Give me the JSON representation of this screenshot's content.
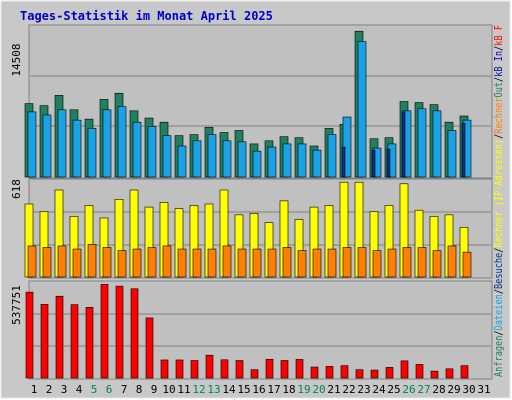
{
  "chart_data": {
    "type": "bar",
    "title": "Tages-Statistik im Monat April 2025",
    "categories": [
      "1",
      "2",
      "3",
      "4",
      "5",
      "6",
      "7",
      "8",
      "9",
      "10",
      "11",
      "12",
      "13",
      "14",
      "15",
      "16",
      "17",
      "18",
      "19",
      "20",
      "21",
      "22",
      "23",
      "24",
      "25",
      "26",
      "27",
      "28",
      "29",
      "30",
      "31"
    ],
    "weekend_days": [
      5,
      6,
      12,
      13,
      19,
      20,
      26,
      27
    ],
    "colors": {
      "title": "#0000cc",
      "plot_bg": "#c0c0c0",
      "outer_bg": "#c8c8c8",
      "grid": "#808080",
      "day_label": "#000000",
      "weekend_label": "#008060",
      "anfragen": "#208060",
      "dateien": "#1aa2e6",
      "besuche": "#00308f",
      "rechner": "#ffff00",
      "kb_out": "#ff8000",
      "kb_in": "#0000aa",
      "kb_f": "#ff0000"
    },
    "panels": [
      {
        "max_label": "14508",
        "ymax": 14508,
        "series": [
          {
            "name": "Anfragen",
            "values": [
              7100,
              6900,
              7900,
              6500,
              5600,
              7500,
              8100,
              6400,
              5700,
              5300,
              4000,
              4100,
              4800,
              4300,
              4500,
              3200,
              3500,
              3900,
              3800,
              3000,
              4700,
              5100,
              14100,
              3700,
              3800,
              7300,
              7200,
              7000,
              5300,
              5900
            ]
          },
          {
            "name": "Dateien",
            "values": [
              6300,
              6000,
              6500,
              5500,
              4700,
              6500,
              6800,
              5300,
              4900,
              4000,
              3000,
              3500,
              4100,
              3500,
              3400,
              2500,
              2900,
              3200,
              3200,
              2600,
              4100,
              5800,
              13100,
              2800,
              3200,
              6400,
              6600,
              6400,
              4500,
              5500
            ]
          },
          {
            "name": "Besuche",
            "values": [
              0,
              0,
              0,
              0,
              0,
              0,
              0,
              0,
              0,
              0,
              0,
              0,
              0,
              0,
              0,
              0,
              0,
              0,
              0,
              0,
              0,
              2900,
              0,
              2600,
              2700,
              6300,
              0,
              0,
              0,
              5200
            ]
          }
        ]
      },
      {
        "max_label": "618",
        "ymax": 618,
        "series": [
          {
            "name": "Rechner (IP-Adressen)",
            "values": [
              470,
              420,
              560,
              390,
              460,
              380,
              500,
              560,
              450,
              480,
              440,
              460,
              470,
              560,
              400,
              410,
              350,
              490,
              370,
              450,
              460,
              610,
              610,
              420,
              460,
              600,
              430,
              390,
              400,
              320
            ]
          },
          {
            "name": "Rechner",
            "values": [
              200,
              190,
              200,
              180,
              210,
              190,
              170,
              180,
              190,
              200,
              180,
              180,
              180,
              200,
              180,
              180,
              180,
              190,
              170,
              180,
              180,
              190,
              190,
              170,
              180,
              190,
              190,
              170,
              200,
              160
            ]
          }
        ]
      },
      {
        "max_label": "537751",
        "ymax": 537751,
        "series": [
          {
            "name": "kB F",
            "values": [
              486000,
              417000,
              463000,
              415000,
              400000,
              530000,
              520000,
              505000,
              340000,
              102000,
              102000,
              99000,
              129000,
              103000,
              99000,
              47000,
              106000,
              99000,
              105000,
              62000,
              66000,
              70000,
              47000,
              45000,
              60000,
              97000,
              77000,
              39000,
              52000,
              70000
            ]
          },
          {
            "name": "kB In",
            "values": [
              0,
              0,
              0,
              0,
              0,
              0,
              0,
              0,
              0,
              0,
              0,
              0,
              0,
              0,
              0,
              0,
              0,
              0,
              0,
              0,
              0,
              0,
              0,
              0,
              0,
              0,
              0,
              0,
              0,
              0
            ]
          }
        ]
      }
    ],
    "legend_right": [
      {
        "text": "Anfragen",
        "color": "#208060"
      },
      {
        "text": "/",
        "color": "#000000"
      },
      {
        "text": "Dateien",
        "color": "#1aa2e6"
      },
      {
        "text": "/",
        "color": "#000000"
      },
      {
        "text": "Besuche",
        "color": "#00308f"
      },
      {
        "text": "/",
        "color": "#000000"
      },
      {
        "text": "Rechner (IP-Adressen)",
        "color": "#ffff00"
      },
      {
        "text": "/",
        "color": "#000000"
      },
      {
        "text": "Rechner",
        "color": "#ff8000"
      },
      {
        "text": "Out",
        "color": "#208060"
      },
      {
        "text": "/",
        "color": "#000000"
      },
      {
        "text": "kB In",
        "color": "#0000aa"
      },
      {
        "text": "/",
        "color": "#000000"
      },
      {
        "text": "kB F",
        "color": "#ff0000"
      }
    ]
  }
}
